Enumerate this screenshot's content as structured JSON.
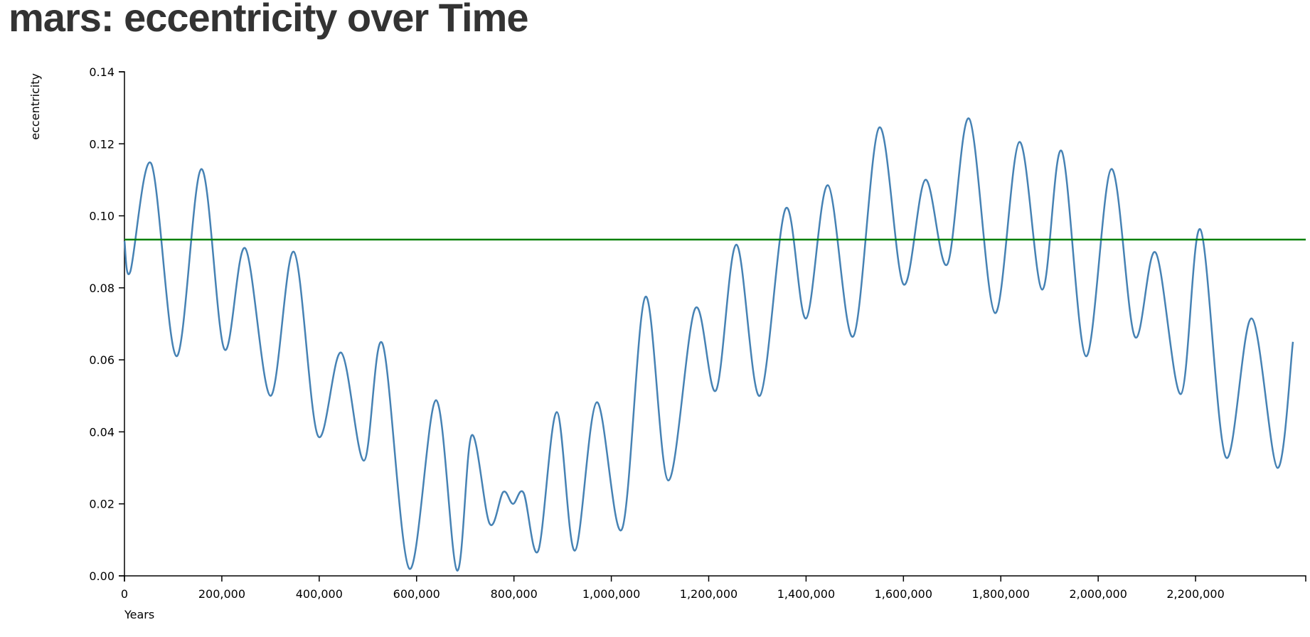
{
  "title": "mars: eccentricity over Time",
  "chart_data": {
    "type": "line",
    "title": "mars: eccentricity over Time",
    "xlabel": "Years",
    "ylabel": "eccentricity",
    "xlim": [
      0,
      2400000
    ],
    "ylim": [
      0,
      0.14
    ],
    "x_ticks": [
      0,
      200000,
      400000,
      600000,
      800000,
      1000000,
      1200000,
      1400000,
      1600000,
      1800000,
      2000000,
      2200000
    ],
    "x_tick_labels": [
      "0",
      "200,000",
      "400,000",
      "600,000",
      "800,000",
      "1,000,000",
      "1,200,000",
      "1,400,000",
      "1,600,000",
      "1,800,000",
      "2,000,000",
      "2,200,000"
    ],
    "y_ticks": [
      0,
      0.02,
      0.04,
      0.06,
      0.08,
      0.1,
      0.12,
      0.14
    ],
    "y_tick_labels": [
      "0.00",
      "0.02",
      "0.04",
      "0.06",
      "0.08",
      "0.10",
      "0.12",
      "0.14"
    ],
    "grid": false,
    "reference_line": {
      "y": 0.0934,
      "color": "#008000"
    },
    "series": [
      {
        "color": "#4682b4",
        "points": [
          [
            0,
            0.093
          ],
          [
            12000,
            0.0845
          ],
          [
            55000,
            0.1145
          ],
          [
            107000,
            0.061
          ],
          [
            158000,
            0.113
          ],
          [
            205000,
            0.063
          ],
          [
            248000,
            0.091
          ],
          [
            300000,
            0.05
          ],
          [
            348000,
            0.09
          ],
          [
            397000,
            0.039
          ],
          [
            445000,
            0.062
          ],
          [
            492000,
            0.032
          ],
          [
            530000,
            0.0645
          ],
          [
            585000,
            0.002
          ],
          [
            640000,
            0.0488
          ],
          [
            683000,
            0.0015
          ],
          [
            713000,
            0.039
          ],
          [
            750000,
            0.0145
          ],
          [
            778000,
            0.0233
          ],
          [
            798000,
            0.02
          ],
          [
            820000,
            0.023
          ],
          [
            850000,
            0.007
          ],
          [
            888000,
            0.0455
          ],
          [
            925000,
            0.007
          ],
          [
            970000,
            0.0482
          ],
          [
            1022000,
            0.013
          ],
          [
            1070000,
            0.0775
          ],
          [
            1117000,
            0.0265
          ],
          [
            1172000,
            0.0742
          ],
          [
            1215000,
            0.0515
          ],
          [
            1257000,
            0.092
          ],
          [
            1305000,
            0.05
          ],
          [
            1358000,
            0.102
          ],
          [
            1400000,
            0.0715
          ],
          [
            1445000,
            0.1085
          ],
          [
            1497000,
            0.0665
          ],
          [
            1550000,
            0.1245
          ],
          [
            1600000,
            0.081
          ],
          [
            1645000,
            0.11
          ],
          [
            1690000,
            0.0865
          ],
          [
            1735000,
            0.127
          ],
          [
            1788000,
            0.073
          ],
          [
            1838000,
            0.1205
          ],
          [
            1885000,
            0.0795
          ],
          [
            1925000,
            0.118
          ],
          [
            1975000,
            0.061
          ],
          [
            2027000,
            0.113
          ],
          [
            2075000,
            0.0665
          ],
          [
            2118000,
            0.0898
          ],
          [
            2170000,
            0.0505
          ],
          [
            2210000,
            0.0962
          ],
          [
            2262000,
            0.033
          ],
          [
            2315000,
            0.0715
          ],
          [
            2368000,
            0.03
          ],
          [
            2400000,
            0.065
          ]
        ]
      }
    ]
  }
}
